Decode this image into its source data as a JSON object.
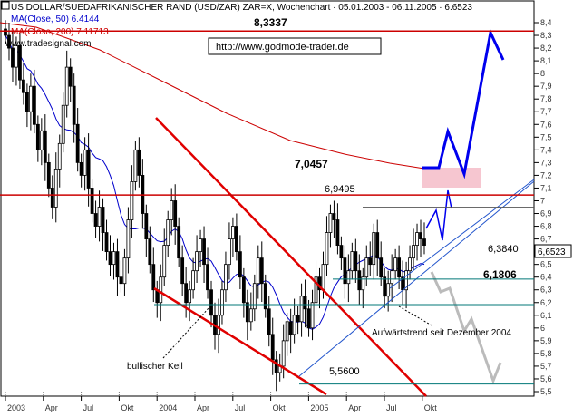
{
  "chart_data": {
    "type": "candlestick",
    "title": "US DOLLAR/SUEDAFRIKANISCHER RAND (USD/ZAR) ZAR=X, Wochenchart · 05.01.2003 - 06.11.2005 · 6.6523",
    "legend": [
      {
        "name": "MA(Close, 50) 6.4144",
        "color": "#0000cc"
      },
      {
        "name": "MA(Close, 200) 7.11713",
        "color": "#cc0000"
      }
    ],
    "source": "www.tradesignal.com",
    "copyright": "http://www.godmode-trader.de",
    "last_price_label": "6,6523",
    "x_ticks": [
      "2003",
      "Apr",
      "Jul",
      "Okt",
      "2004",
      "Apr",
      "Jul",
      "Okt",
      "2005",
      "Apr",
      "Jul",
      "Okt"
    ],
    "y_ticks": [
      "8,4",
      "8,3",
      "8,2",
      "8,1",
      "8",
      "7,9",
      "7,8",
      "7,7",
      "7,6",
      "7,5",
      "7,4",
      "7,3",
      "7,2",
      "7,1",
      "7",
      "6,9",
      "6,8",
      "6,7",
      "6,6",
      "6,5",
      "6,4",
      "6,3",
      "6,2",
      "6,1",
      "6",
      "5,9",
      "5,8",
      "5,7",
      "5,6",
      "5,5"
    ],
    "ylim": [
      5.45,
      8.5
    ],
    "levels": [
      {
        "label": "8,3337",
        "value": 8.3337,
        "color": "#cc0000"
      },
      {
        "label": "7,0457",
        "value": 7.0457,
        "color": "#cc0000"
      },
      {
        "label": "6,9495",
        "value": 6.9495,
        "color": "#555555"
      },
      {
        "label": "6,3840",
        "value": 6.384,
        "color": "#007777"
      },
      {
        "label": "6,1806",
        "value": 6.1806,
        "color": "#007777"
      },
      {
        "label": "5,5600",
        "value": 5.56,
        "color": "#007777"
      }
    ],
    "annotations": [
      {
        "text": "bullischer Keil"
      },
      {
        "text": "Aufwärtstrend seit Dezember 2004"
      }
    ],
    "series_close": [
      8.3,
      8.2,
      8.05,
      8.22,
      7.95,
      7.85,
      7.7,
      7.9,
      7.6,
      7.4,
      7.55,
      7.3,
      7.1,
      6.95,
      7.25,
      7.45,
      7.75,
      8.05,
      7.9,
      7.6,
      7.3,
      7.2,
      7.4,
      7.1,
      6.9,
      6.8,
      6.95,
      6.75,
      6.6,
      6.5,
      6.6,
      6.4,
      6.35,
      6.55,
      6.85,
      7.15,
      7.4,
      7.2,
      6.9,
      6.7,
      6.5,
      6.3,
      6.2,
      6.4,
      6.65,
      6.85,
      7.0,
      6.8,
      6.55,
      6.35,
      6.2,
      6.3,
      6.45,
      6.6,
      6.7,
      6.5,
      6.3,
      6.1,
      5.95,
      6.1,
      6.3,
      6.5,
      6.7,
      6.8,
      6.6,
      6.4,
      6.2,
      6.05,
      6.15,
      6.35,
      6.55,
      6.35,
      6.15,
      5.95,
      5.75,
      5.65,
      5.7,
      5.9,
      6.05,
      5.95,
      6.1,
      6.05,
      6.25,
      6.15,
      6.0,
      6.2,
      6.4,
      6.3,
      6.5,
      6.75,
      6.9,
      6.85,
      6.65,
      6.55,
      6.35,
      6.45,
      6.6,
      6.45,
      6.3,
      6.4,
      6.55,
      6.5,
      6.75,
      6.55,
      6.4,
      6.25,
      6.35,
      6.45,
      6.55,
      6.4,
      6.3,
      6.45,
      6.55,
      6.65,
      6.75,
      6.7,
      6.65
    ]
  }
}
